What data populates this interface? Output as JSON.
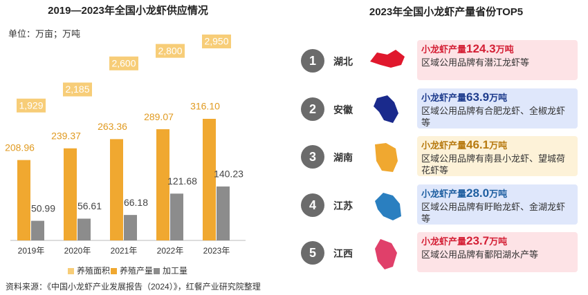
{
  "chart_data": {
    "type": "bar",
    "title": "2019—2023年全国小龙虾供应情况",
    "unit_note": "单位：万亩；万吨",
    "categories": [
      "2019年",
      "2020年",
      "2021年",
      "2022年",
      "2023年"
    ],
    "series": [
      {
        "name": "养殖面积",
        "type": "area",
        "color": "#fbe9c6",
        "label_color": "#f7cd78",
        "values": [
          1929,
          2185,
          2600,
          2800,
          2950
        ],
        "value_labels": [
          "1,929",
          "2,185",
          "2,600",
          "2,800",
          "2,950"
        ]
      },
      {
        "name": "养殖产量",
        "color": "#f0a830",
        "values": [
          208.96,
          239.37,
          263.36,
          289.07,
          316.1
        ],
        "value_labels": [
          "208.96",
          "239.37",
          "263.36",
          "289.07",
          "316.10"
        ]
      },
      {
        "name": "加工量",
        "color": "#8c8c8c",
        "values": [
          50.99,
          56.61,
          66.18,
          121.68,
          140.23
        ]
      }
    ],
    "source": "资料来源：《中国小龙虾产业发展报告（2024）》，红餐产业研究院整理"
  },
  "ranking": {
    "title": "2023年全国小龙虾产量省份TOP5",
    "metric": "小龙虾产量",
    "unit": "万吨",
    "items": [
      {
        "rank": 1,
        "province": "湖北",
        "value": 124.3,
        "value_label": "124.3",
        "description": "区域公用品牌有潜江龙虾等",
        "color": "#e0182d",
        "card_color": "#fde3e6",
        "text_color": "#d41f35"
      },
      {
        "rank": 2,
        "province": "安徽",
        "value": 63.9,
        "value_label": "63.9",
        "description": "区域公用品牌有合肥龙虾、全椒龙虾等",
        "color": "#1a2a8c",
        "card_color": "#dfe7fb",
        "text_color": "#1d3b8c"
      },
      {
        "rank": 3,
        "province": "湖南",
        "value": 46.1,
        "value_label": "46.1",
        "description": "区域公用品牌有南县小龙虾、望城荷花虾等",
        "color": "#f0a830",
        "card_color": "#fdf2d8",
        "text_color": "#b77a10"
      },
      {
        "rank": 4,
        "province": "江苏",
        "value": 28.0,
        "value_label": "28.0",
        "description": "区域公用品牌有盱眙龙虾、金湖龙虾等",
        "color": "#2a7fc0",
        "card_color": "#dfe7fb",
        "text_color": "#1d5ea0"
      },
      {
        "rank": 5,
        "province": "江西",
        "value": 23.7,
        "value_label": "23.7",
        "description": "区域公用品牌有鄱阳湖水产等",
        "color": "#e0406a",
        "card_color": "#fde3e6",
        "text_color": "#d41f35"
      }
    ]
  }
}
